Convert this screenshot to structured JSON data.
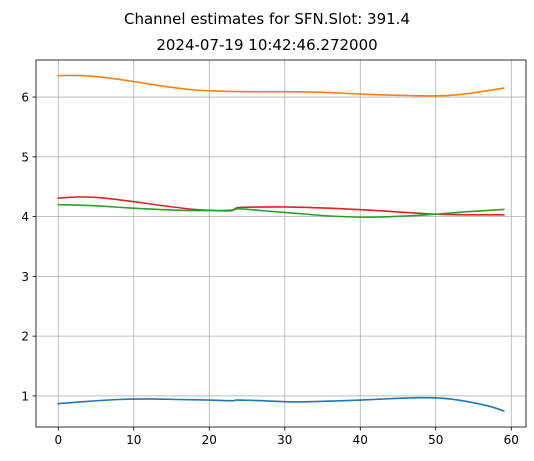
{
  "chart_data": {
    "type": "line",
    "title": "Channel estimates for SFN.Slot: 391.4",
    "subtitle": "2024-07-19 10:42:46.272000",
    "xlabel": "",
    "ylabel": "",
    "xlim": [
      -2.95,
      61.95
    ],
    "ylim": [
      0.48,
      6.62
    ],
    "xticks": [
      0,
      10,
      20,
      30,
      40,
      50,
      60
    ],
    "yticks": [
      1,
      2,
      3,
      4,
      5,
      6
    ],
    "grid": true,
    "legend": "none",
    "series": [
      {
        "color": "#ff7f0e",
        "points": [
          [
            0,
            6.36
          ],
          [
            3,
            6.36
          ],
          [
            6,
            6.33
          ],
          [
            10,
            6.26
          ],
          [
            14,
            6.18
          ],
          [
            18,
            6.12
          ],
          [
            21,
            6.1
          ],
          [
            25,
            6.09
          ],
          [
            30,
            6.09
          ],
          [
            35,
            6.08
          ],
          [
            40,
            6.05
          ],
          [
            45,
            6.03
          ],
          [
            50,
            6.02
          ],
          [
            53,
            6.04
          ],
          [
            56,
            6.09
          ],
          [
            59,
            6.15
          ]
        ]
      },
      {
        "color": "#d62728",
        "points": [
          [
            0,
            4.31
          ],
          [
            3,
            4.33
          ],
          [
            6,
            4.31
          ],
          [
            10,
            4.25
          ],
          [
            14,
            4.18
          ],
          [
            18,
            4.12
          ],
          [
            21,
            4.1
          ],
          [
            23,
            4.1
          ],
          [
            23.8,
            4.15
          ],
          [
            27,
            4.16
          ],
          [
            31,
            4.16
          ],
          [
            36,
            4.14
          ],
          [
            41,
            4.11
          ],
          [
            46,
            4.07
          ],
          [
            50,
            4.04
          ],
          [
            54,
            4.03
          ],
          [
            59,
            4.03
          ]
        ]
      },
      {
        "color": "#2ca02c",
        "points": [
          [
            0,
            4.2
          ],
          [
            5,
            4.18
          ],
          [
            10,
            4.14
          ],
          [
            15,
            4.11
          ],
          [
            20,
            4.1
          ],
          [
            23,
            4.11
          ],
          [
            24,
            4.13
          ],
          [
            27,
            4.1
          ],
          [
            31,
            4.06
          ],
          [
            36,
            4.01
          ],
          [
            41,
            3.99
          ],
          [
            46,
            4.01
          ],
          [
            50,
            4.04
          ],
          [
            54,
            4.08
          ],
          [
            59,
            4.12
          ]
        ]
      },
      {
        "color": "#1f77b4",
        "points": [
          [
            0,
            0.87
          ],
          [
            4,
            0.91
          ],
          [
            8,
            0.94
          ],
          [
            12,
            0.95
          ],
          [
            16,
            0.94
          ],
          [
            20,
            0.93
          ],
          [
            23,
            0.92
          ],
          [
            23.8,
            0.93
          ],
          [
            27,
            0.92
          ],
          [
            31,
            0.9
          ],
          [
            35,
            0.91
          ],
          [
            40,
            0.93
          ],
          [
            45,
            0.96
          ],
          [
            48,
            0.97
          ],
          [
            51,
            0.96
          ],
          [
            54,
            0.91
          ],
          [
            57,
            0.83
          ],
          [
            59,
            0.75
          ]
        ]
      }
    ]
  }
}
